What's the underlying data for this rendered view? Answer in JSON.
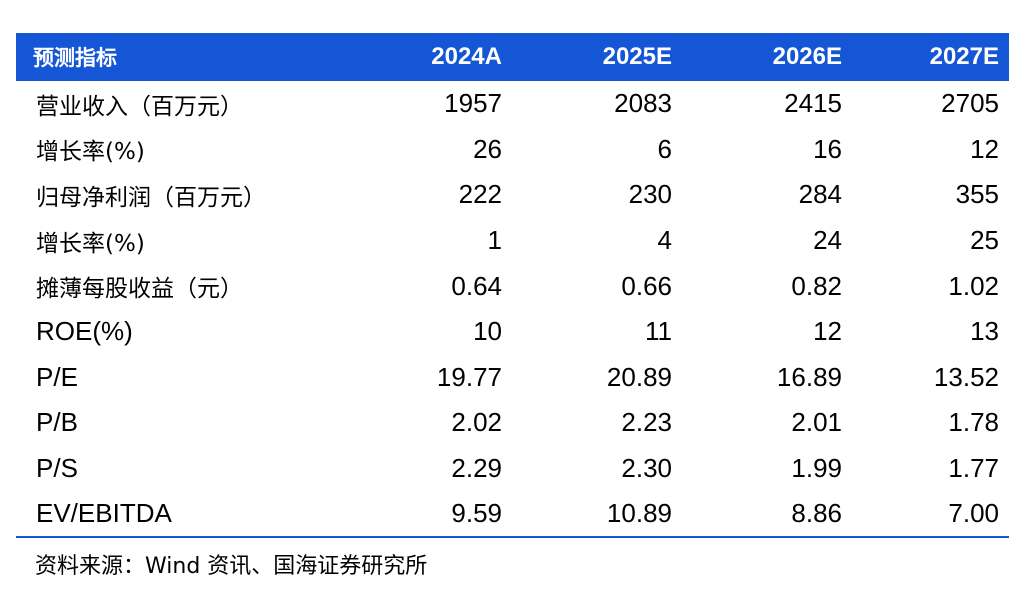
{
  "table": {
    "headers": [
      "预测指标",
      "2024A",
      "2025E",
      "2026E",
      "2027E"
    ],
    "rows": [
      [
        "营业收入（百万元）",
        "1957",
        "2083",
        "2415",
        "2705"
      ],
      [
        "增长率(%)",
        "26",
        "6",
        "16",
        "12"
      ],
      [
        "归母净利润（百万元）",
        "222",
        "230",
        "284",
        "355"
      ],
      [
        "增长率(%)",
        "1",
        "4",
        "24",
        "25"
      ],
      [
        "摊薄每股收益（元）",
        "0.64",
        "0.66",
        "0.82",
        "1.02"
      ],
      [
        "ROE(%)",
        "10",
        "11",
        "12",
        "13"
      ],
      [
        "P/E",
        "19.77",
        "20.89",
        "16.89",
        "13.52"
      ],
      [
        "P/B",
        "2.02",
        "2.23",
        "2.01",
        "1.78"
      ],
      [
        "P/S",
        "2.29",
        "2.30",
        "1.99",
        "1.77"
      ],
      [
        "EV/EBITDA",
        "9.59",
        "10.89",
        "8.86",
        "7.00"
      ]
    ]
  },
  "source": "资料来源：Wind 资讯、国海证券研究所",
  "colors": {
    "header_bg": "#1456d6",
    "header_text": "#ffffff",
    "rule": "#1456d6"
  }
}
